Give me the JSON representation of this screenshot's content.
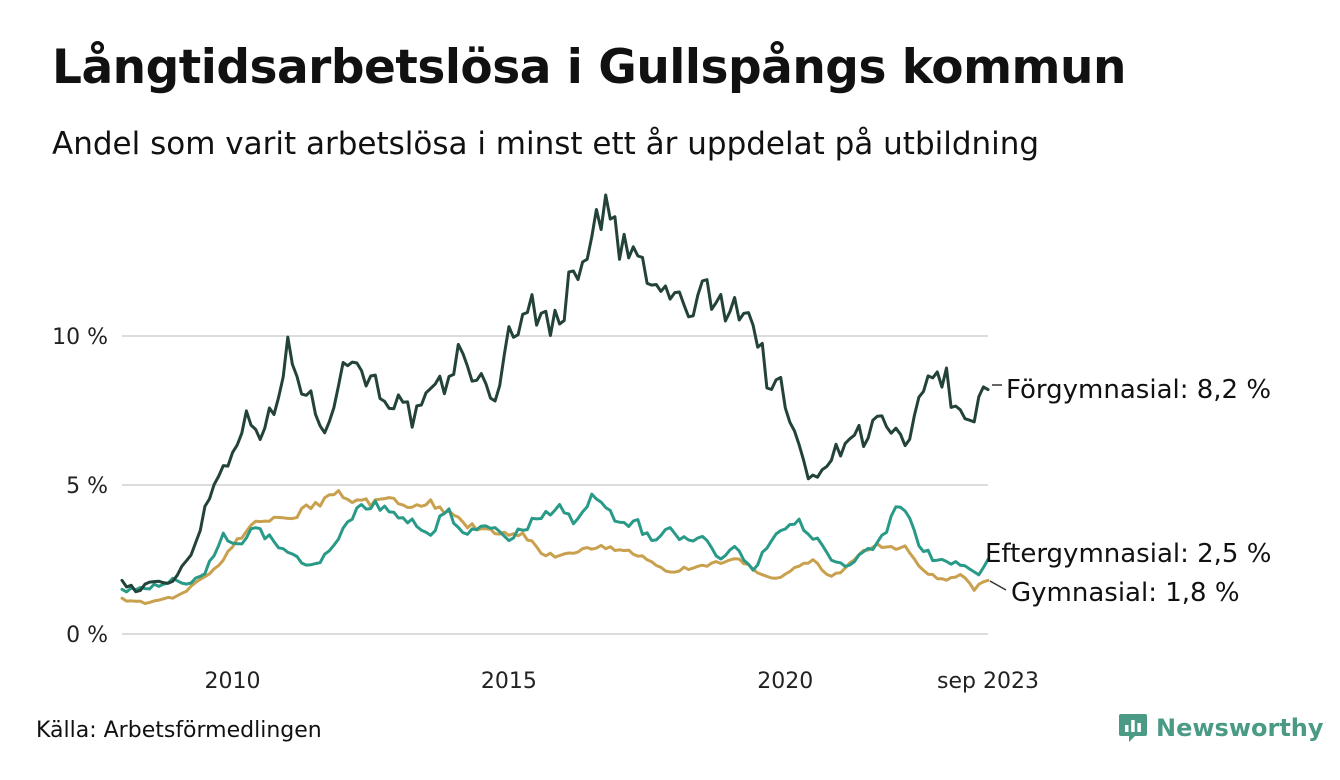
{
  "title": "Långtidsarbetslösa i Gullspångs kommun",
  "subtitle": "Andel som varit arbetslösa i minst ett år uppdelat på utbildning",
  "source": "Källa: Arbetsförmedlingen",
  "brand": {
    "name": "Newsworthy",
    "icon": "newsworthy-logo-icon",
    "color": "#4a9a86"
  },
  "chart_data": {
    "type": "line",
    "x_start": "2008-01",
    "x_end": "2023-09",
    "x_ticks": [
      {
        "label": "2010",
        "t": 2010.0
      },
      {
        "label": "2015",
        "t": 2015.0
      },
      {
        "label": "2020",
        "t": 2020.0
      },
      {
        "label": "sep 2023",
        "t": 2023.667
      }
    ],
    "y_ticks": [
      {
        "label": "0 %",
        "v": 0
      },
      {
        "label": "5 %",
        "v": 5
      },
      {
        "label": "10 %",
        "v": 10
      }
    ],
    "ylim": [
      0,
      15
    ],
    "grid": true,
    "series": [
      {
        "name": "Förgymnasial",
        "label": "Förgymnasial: 8,2 %",
        "last_value": 8.2,
        "color": "#22423a",
        "anchors": [
          [
            2008.0,
            1.8
          ],
          [
            2008.3,
            1.4
          ],
          [
            2008.5,
            1.8
          ],
          [
            2008.8,
            1.6
          ],
          [
            2009.0,
            2.0
          ],
          [
            2009.3,
            2.9
          ],
          [
            2009.6,
            4.8
          ],
          [
            2009.9,
            5.8
          ],
          [
            2010.2,
            7.2
          ],
          [
            2010.5,
            6.9
          ],
          [
            2010.8,
            7.5
          ],
          [
            2011.0,
            9.6
          ],
          [
            2011.2,
            8.6
          ],
          [
            2011.4,
            7.8
          ],
          [
            2011.7,
            7.0
          ],
          [
            2011.9,
            8.5
          ],
          [
            2012.2,
            9.4
          ],
          [
            2012.5,
            8.5
          ],
          [
            2012.8,
            8.0
          ],
          [
            2013.0,
            7.7
          ],
          [
            2013.3,
            7.2
          ],
          [
            2013.6,
            8.0
          ],
          [
            2013.9,
            8.5
          ],
          [
            2014.1,
            9.4
          ],
          [
            2014.4,
            8.8
          ],
          [
            2014.7,
            7.6
          ],
          [
            2015.0,
            10.0
          ],
          [
            2015.3,
            11.0
          ],
          [
            2015.6,
            10.6
          ],
          [
            2015.9,
            10.5
          ],
          [
            2016.2,
            12.2
          ],
          [
            2016.5,
            13.5
          ],
          [
            2016.8,
            14.2
          ],
          [
            2017.0,
            13.0
          ],
          [
            2017.3,
            12.7
          ],
          [
            2017.6,
            11.5
          ],
          [
            2017.9,
            11.5
          ],
          [
            2018.2,
            10.8
          ],
          [
            2018.5,
            11.4
          ],
          [
            2018.8,
            11.0
          ],
          [
            2019.1,
            11.2
          ],
          [
            2019.4,
            10.5
          ],
          [
            2019.7,
            8.5
          ],
          [
            2019.9,
            8.3
          ],
          [
            2020.2,
            6.5
          ],
          [
            2020.4,
            5.2
          ],
          [
            2020.6,
            5.6
          ],
          [
            2020.9,
            6.0
          ],
          [
            2021.2,
            6.9
          ],
          [
            2021.4,
            6.6
          ],
          [
            2021.7,
            7.2
          ],
          [
            2022.0,
            6.7
          ],
          [
            2022.2,
            6.0
          ],
          [
            2022.4,
            7.5
          ],
          [
            2022.7,
            8.8
          ],
          [
            2022.9,
            8.6
          ],
          [
            2023.1,
            7.2
          ],
          [
            2023.4,
            7.3
          ],
          [
            2023.667,
            8.2
          ]
        ]
      },
      {
        "name": "Eftergymnasial",
        "label": "Eftergymnasial: 2,5 %",
        "last_value": 2.5,
        "color": "#2a9a88",
        "anchors": [
          [
            2008.0,
            1.5
          ],
          [
            2008.3,
            1.5
          ],
          [
            2008.6,
            1.6
          ],
          [
            2008.9,
            1.8
          ],
          [
            2009.2,
            1.7
          ],
          [
            2009.5,
            2.0
          ],
          [
            2009.8,
            3.3
          ],
          [
            2010.1,
            3.0
          ],
          [
            2010.4,
            3.5
          ],
          [
            2010.7,
            3.2
          ],
          [
            2011.0,
            2.8
          ],
          [
            2011.3,
            2.4
          ],
          [
            2011.6,
            2.4
          ],
          [
            2011.9,
            3.2
          ],
          [
            2012.2,
            4.1
          ],
          [
            2012.5,
            4.4
          ],
          [
            2012.8,
            4.2
          ],
          [
            2013.0,
            3.8
          ],
          [
            2013.3,
            3.7
          ],
          [
            2013.6,
            3.4
          ],
          [
            2013.9,
            4.2
          ],
          [
            2014.2,
            3.2
          ],
          [
            2014.5,
            3.6
          ],
          [
            2014.8,
            3.5
          ],
          [
            2015.0,
            3.2
          ],
          [
            2015.3,
            3.6
          ],
          [
            2015.6,
            4.0
          ],
          [
            2015.9,
            4.3
          ],
          [
            2016.2,
            3.6
          ],
          [
            2016.5,
            4.6
          ],
          [
            2016.8,
            4.2
          ],
          [
            2017.0,
            3.6
          ],
          [
            2017.3,
            3.8
          ],
          [
            2017.6,
            3.0
          ],
          [
            2017.9,
            3.5
          ],
          [
            2018.2,
            3.1
          ],
          [
            2018.5,
            3.2
          ],
          [
            2018.8,
            2.6
          ],
          [
            2019.1,
            2.9
          ],
          [
            2019.4,
            2.1
          ],
          [
            2019.7,
            3.0
          ],
          [
            2019.9,
            3.5
          ],
          [
            2020.2,
            3.8
          ],
          [
            2020.5,
            3.3
          ],
          [
            2020.8,
            2.6
          ],
          [
            2021.1,
            2.2
          ],
          [
            2021.4,
            2.8
          ],
          [
            2021.7,
            3.0
          ],
          [
            2022.0,
            4.1
          ],
          [
            2022.2,
            4.1
          ],
          [
            2022.4,
            3.0
          ],
          [
            2022.7,
            2.5
          ],
          [
            2022.9,
            2.5
          ],
          [
            2023.2,
            2.3
          ],
          [
            2023.5,
            2.0
          ],
          [
            2023.667,
            2.5
          ]
        ]
      },
      {
        "name": "Gymnasial",
        "label": "Gymnasial: 1,8 %",
        "last_value": 1.8,
        "color": "#c9a04e",
        "anchors": [
          [
            2008.0,
            1.2
          ],
          [
            2008.3,
            1.05
          ],
          [
            2008.6,
            1.1
          ],
          [
            2008.9,
            1.2
          ],
          [
            2009.2,
            1.5
          ],
          [
            2009.5,
            1.9
          ],
          [
            2009.8,
            2.4
          ],
          [
            2010.1,
            3.2
          ],
          [
            2010.4,
            3.7
          ],
          [
            2010.7,
            3.9
          ],
          [
            2011.0,
            3.8
          ],
          [
            2011.3,
            4.2
          ],
          [
            2011.6,
            4.4
          ],
          [
            2011.9,
            4.7
          ],
          [
            2012.2,
            4.5
          ],
          [
            2012.5,
            4.4
          ],
          [
            2012.8,
            4.5
          ],
          [
            2013.0,
            4.4
          ],
          [
            2013.3,
            4.3
          ],
          [
            2013.6,
            4.4
          ],
          [
            2013.9,
            4.1
          ],
          [
            2014.2,
            3.7
          ],
          [
            2014.5,
            3.5
          ],
          [
            2014.8,
            3.4
          ],
          [
            2015.0,
            3.4
          ],
          [
            2015.3,
            3.3
          ],
          [
            2015.6,
            2.7
          ],
          [
            2015.9,
            2.6
          ],
          [
            2016.2,
            2.8
          ],
          [
            2016.5,
            2.9
          ],
          [
            2016.8,
            2.9
          ],
          [
            2017.0,
            2.8
          ],
          [
            2017.3,
            2.7
          ],
          [
            2017.6,
            2.4
          ],
          [
            2017.9,
            2.1
          ],
          [
            2018.2,
            2.2
          ],
          [
            2018.5,
            2.3
          ],
          [
            2018.8,
            2.4
          ],
          [
            2019.1,
            2.6
          ],
          [
            2019.4,
            2.2
          ],
          [
            2019.7,
            1.9
          ],
          [
            2019.9,
            1.9
          ],
          [
            2020.2,
            2.3
          ],
          [
            2020.5,
            2.5
          ],
          [
            2020.8,
            1.9
          ],
          [
            2021.1,
            2.2
          ],
          [
            2021.4,
            2.8
          ],
          [
            2021.7,
            3.0
          ],
          [
            2022.0,
            2.9
          ],
          [
            2022.2,
            2.9
          ],
          [
            2022.4,
            2.3
          ],
          [
            2022.7,
            1.9
          ],
          [
            2022.9,
            1.8
          ],
          [
            2023.2,
            2.0
          ],
          [
            2023.4,
            1.5
          ],
          [
            2023.667,
            1.8
          ]
        ]
      }
    ]
  }
}
